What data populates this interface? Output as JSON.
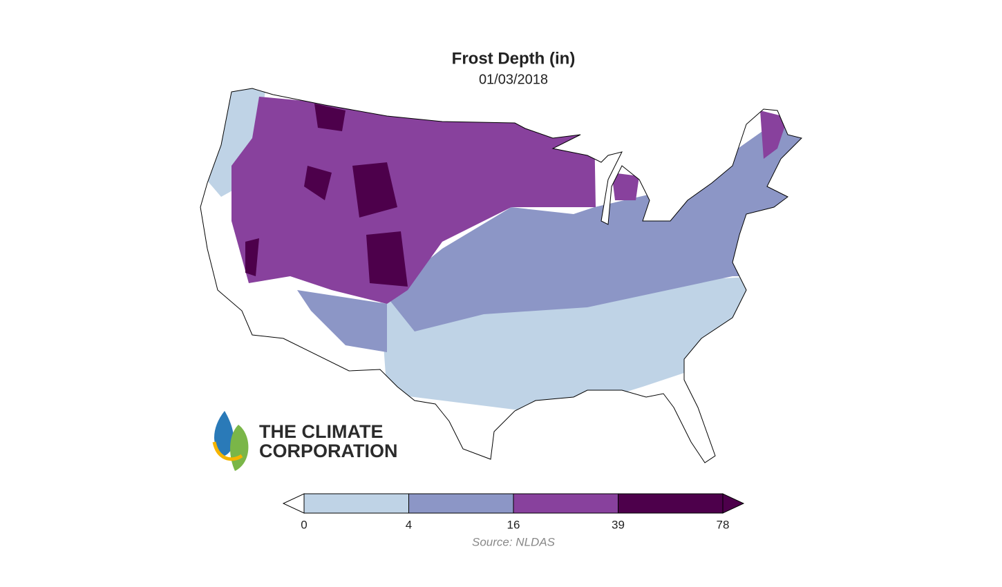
{
  "title": "Frost Depth (in)",
  "subtitle": "01/03/2018",
  "colorbar": {
    "ticks": [
      0,
      4,
      16,
      39,
      78
    ],
    "colors": [
      "#bfd3e6",
      "#8c96c6",
      "#88419d",
      "#4d004b"
    ],
    "under": "#ffffff",
    "over": "#4d004b"
  },
  "source": "Source: NLDAS",
  "logo": [
    "THE CLIMATE",
    "CORPORATION"
  ]
}
